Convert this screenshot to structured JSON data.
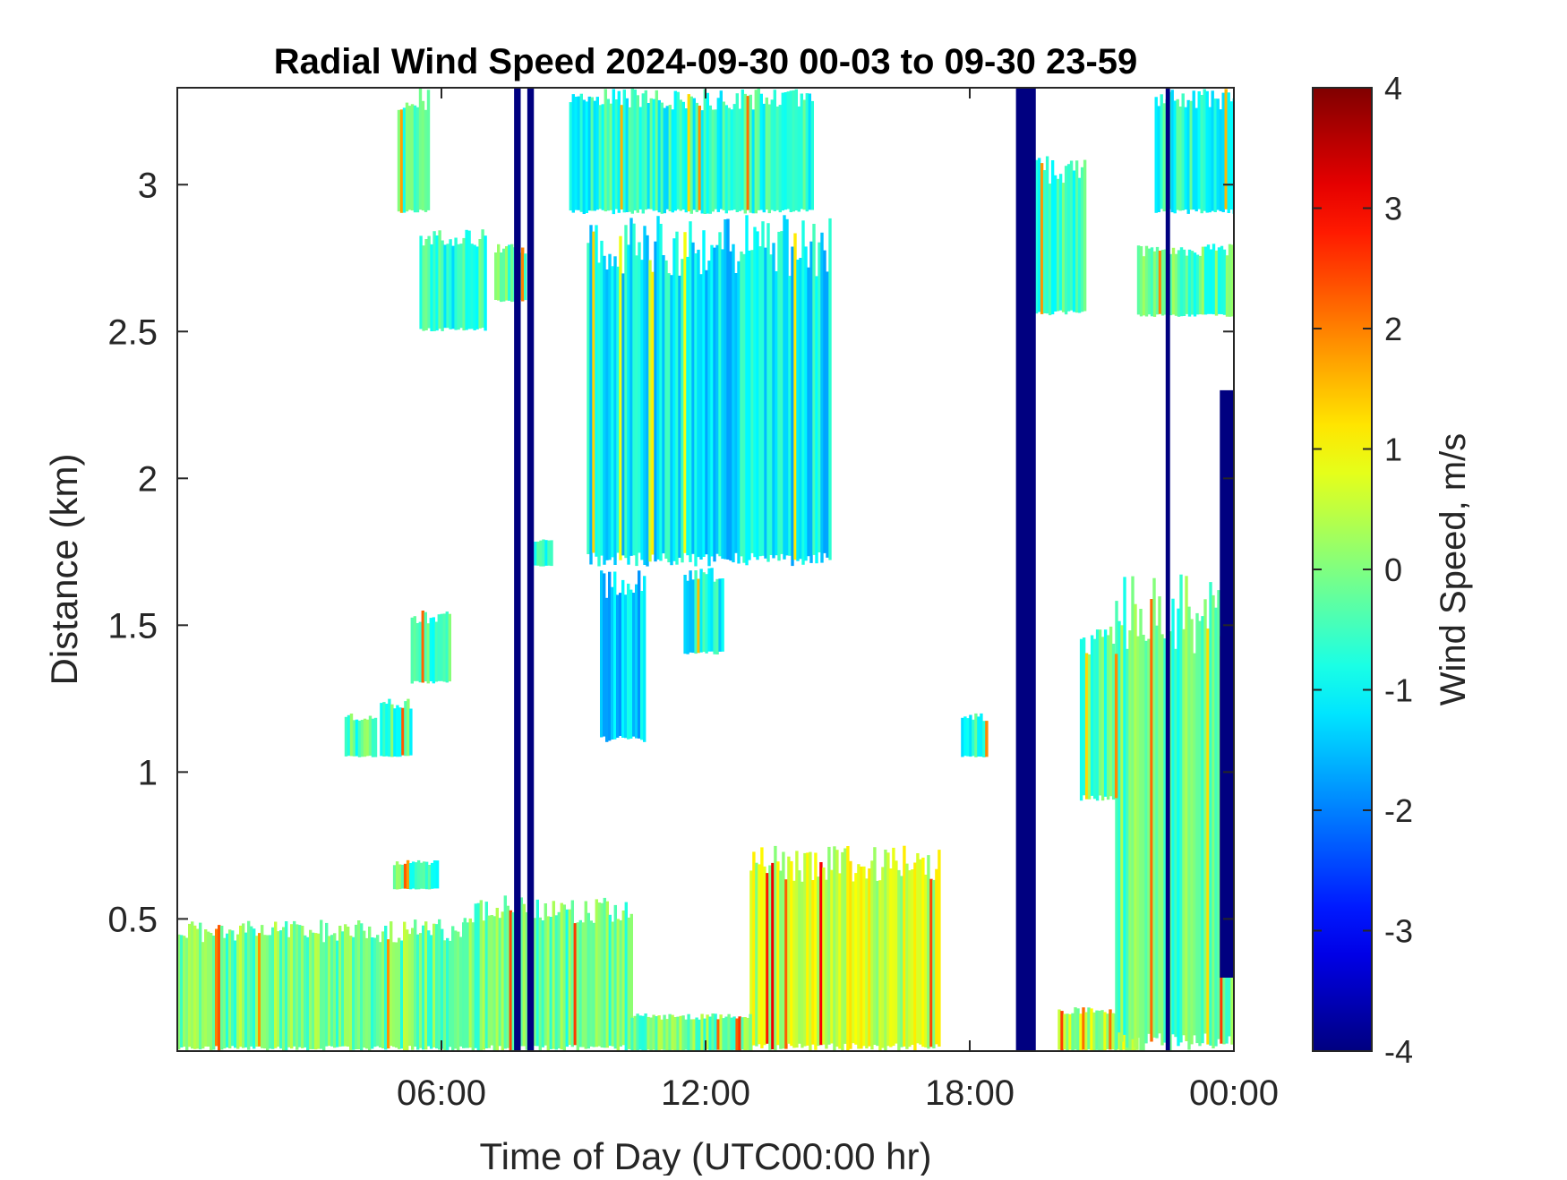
{
  "chart_data": {
    "type": "heatmap",
    "title": "Radial Wind Speed 2024-09-30 00-03 to 09-30 23-59",
    "xlabel": "Time of Day (UTC00:00 hr)",
    "ylabel": "Distance (km)",
    "x_unit": "hours",
    "xlim": [
      0,
      24
    ],
    "ylim": [
      0.05,
      3.33
    ],
    "x_ticks": [
      {
        "value": 6,
        "label": "06:00"
      },
      {
        "value": 12,
        "label": "12:00"
      },
      {
        "value": 18,
        "label": "18:00"
      },
      {
        "value": 24,
        "label": "00:00"
      }
    ],
    "y_ticks": [
      {
        "value": 0.5,
        "label": "0.5"
      },
      {
        "value": 1,
        "label": "1"
      },
      {
        "value": 1.5,
        "label": "1.5"
      },
      {
        "value": 2,
        "label": "2"
      },
      {
        "value": 2.5,
        "label": "2.5"
      },
      {
        "value": 3,
        "label": "3"
      }
    ],
    "colorbar": {
      "label": "Wind Speed, m/s",
      "colormap": "jet",
      "range": [
        -4,
        4
      ],
      "ticks": [
        {
          "value": 4,
          "label": "4"
        },
        {
          "value": 3,
          "label": "3"
        },
        {
          "value": 2,
          "label": "2"
        },
        {
          "value": 1,
          "label": "1"
        },
        {
          "value": 0,
          "label": "0"
        },
        {
          "value": -1,
          "label": "-1"
        },
        {
          "value": -2,
          "label": "-2"
        },
        {
          "value": -3,
          "label": "-3"
        },
        {
          "value": -4,
          "label": "-4"
        }
      ]
    },
    "regions": [
      {
        "t0": 0.0,
        "t1": 6.5,
        "d0": 0.05,
        "d1": 0.5,
        "v": -0.1
      },
      {
        "t0": 6.5,
        "t1": 10.3,
        "d0": 0.05,
        "d1": 0.58,
        "v": -0.2
      },
      {
        "t0": 4.9,
        "t1": 5.9,
        "d0": 0.6,
        "d1": 0.7,
        "v": -0.4
      },
      {
        "t0": 13.0,
        "t1": 17.3,
        "d0": 0.05,
        "d1": 0.75,
        "v": 0.6
      },
      {
        "t0": 10.3,
        "t1": 13.0,
        "d0": 0.05,
        "d1": 0.18,
        "v": -0.1
      },
      {
        "t0": 20.0,
        "t1": 21.8,
        "d0": 0.05,
        "d1": 0.2,
        "v": 0.4
      },
      {
        "t0": 21.3,
        "t1": 24.0,
        "d0": 0.05,
        "d1": 1.7,
        "v": -0.3
      },
      {
        "t0": 20.5,
        "t1": 21.3,
        "d0": 0.9,
        "d1": 1.5,
        "v": -0.4
      },
      {
        "t0": 9.3,
        "t1": 14.8,
        "d0": 1.7,
        "d1": 2.9,
        "v": -1.1
      },
      {
        "t0": 9.6,
        "t1": 10.6,
        "d0": 1.1,
        "d1": 1.7,
        "v": -1.2
      },
      {
        "t0": 11.5,
        "t1": 12.4,
        "d0": 1.4,
        "d1": 1.7,
        "v": -1.0
      },
      {
        "t0": 8.9,
        "t1": 14.4,
        "d0": 2.9,
        "d1": 3.33,
        "v": -0.7
      },
      {
        "t0": 5.0,
        "t1": 5.7,
        "d0": 2.9,
        "d1": 3.33,
        "v": -0.6
      },
      {
        "t0": 5.5,
        "t1": 7.0,
        "d0": 2.5,
        "d1": 2.85,
        "v": -0.7
      },
      {
        "t0": 7.2,
        "t1": 7.9,
        "d0": 2.6,
        "d1": 2.8,
        "v": -0.4
      },
      {
        "t0": 3.8,
        "t1": 4.5,
        "d0": 1.05,
        "d1": 1.2,
        "v": -0.4
      },
      {
        "t0": 4.6,
        "t1": 5.3,
        "d0": 1.05,
        "d1": 1.25,
        "v": -0.5
      },
      {
        "t0": 5.3,
        "t1": 6.2,
        "d0": 1.3,
        "d1": 1.55,
        "v": -0.6
      },
      {
        "t0": 8.1,
        "t1": 8.5,
        "d0": 1.7,
        "d1": 1.8,
        "v": -0.7
      },
      {
        "t0": 17.8,
        "t1": 18.4,
        "d0": 1.05,
        "d1": 1.2,
        "v": -0.8
      },
      {
        "t0": 19.3,
        "t1": 20.6,
        "d0": 2.55,
        "d1": 3.1,
        "v": -0.5
      },
      {
        "t0": 21.8,
        "t1": 24.0,
        "d0": 2.55,
        "d1": 2.8,
        "v": -0.3
      },
      {
        "t0": 22.2,
        "t1": 24.0,
        "d0": 2.9,
        "d1": 3.33,
        "v": -0.8
      }
    ],
    "invalid_bands": [
      {
        "t0": 7.65,
        "t1": 7.8,
        "v": -4
      },
      {
        "t0": 7.95,
        "t1": 8.1,
        "v": -4
      },
      {
        "t0": 19.05,
        "t1": 19.5,
        "v": -4
      },
      {
        "t0": 22.45,
        "t1": 22.55,
        "v": -4
      },
      {
        "t0": 23.68,
        "t1": 24.0,
        "v": -4,
        "d0": 0.3,
        "d1": 2.3
      }
    ]
  }
}
